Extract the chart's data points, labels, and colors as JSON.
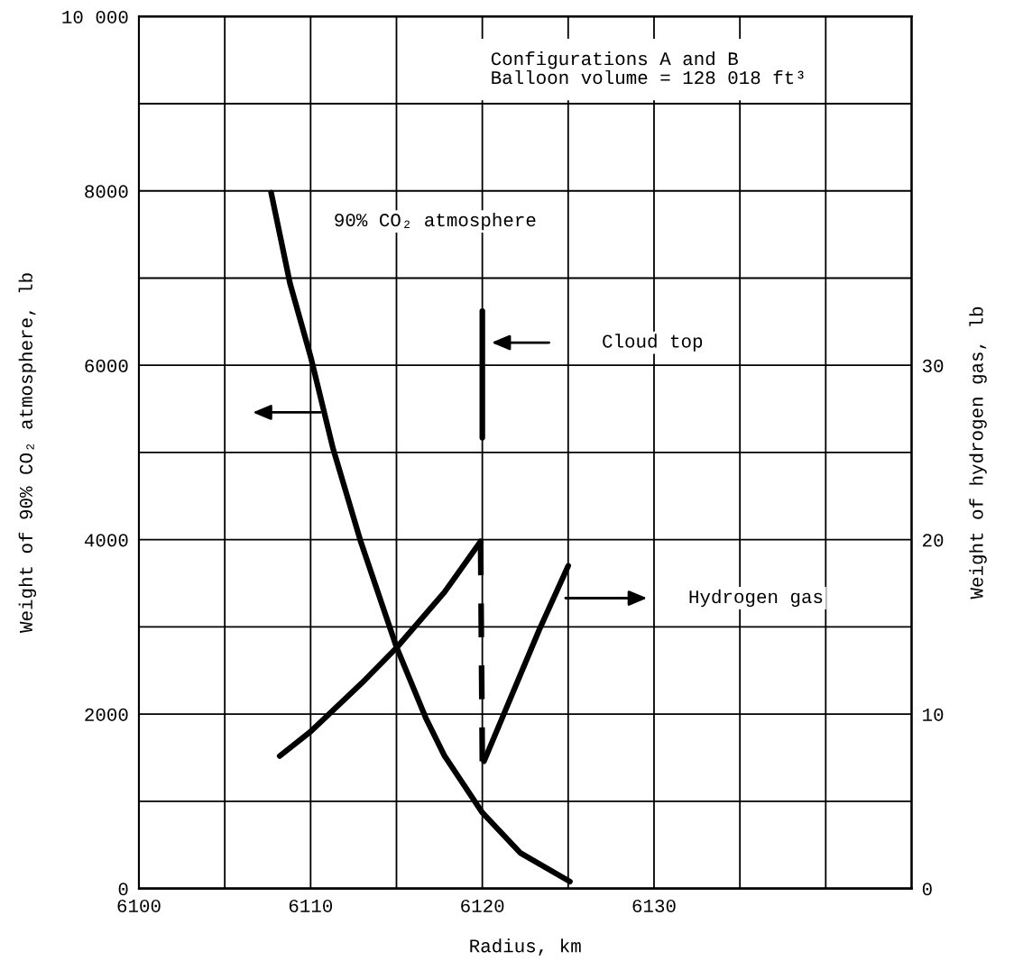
{
  "chart_data": {
    "type": "line",
    "xlabel": "Radius, km",
    "ylabel": "Weight of 90% CO₂ atmosphere, lb",
    "y2label": "Weight of hydrogen gas, lb",
    "xlim": [
      6100,
      6145
    ],
    "xticks": [
      6100,
      {
        "value": 6105,
        "label": null
      },
      6110,
      {
        "value": 6115,
        "label": null
      },
      6120,
      {
        "value": 6125,
        "label": null
      },
      6130,
      {
        "value": 6135,
        "label": null
      },
      {
        "value": 6140,
        "label": null
      }
    ],
    "ylim": [
      0,
      10000
    ],
    "yticks": [
      0,
      {
        "value": 1000,
        "label": null
      },
      2000,
      {
        "value": 3000,
        "label": null
      },
      4000,
      {
        "value": 5000,
        "label": null
      },
      6000,
      {
        "value": 7000,
        "label": null
      },
      8000,
      {
        "value": 9000,
        "label": null
      },
      {
        "value": 10000,
        "label": "10 000"
      }
    ],
    "y2lim": [
      0,
      50
    ],
    "y2ticks": [
      0,
      10,
      20,
      30
    ],
    "grid": true,
    "legend": false,
    "marker": "none",
    "series": [
      {
        "type": "line",
        "axis": "y",
        "color": "#000000",
        "line_style": "solid",
        "x": [
          6107.7,
          6108.8,
          6110.0,
          6111.3,
          6112.9,
          6115.0,
          6116.7,
          6117.8,
          6120.0,
          6122.2,
          6125.1
        ],
        "values": [
          7980,
          6940,
          6100,
          5050,
          3990,
          2770,
          1960,
          1520,
          870,
          410,
          80
        ]
      },
      {
        "type": "line",
        "axis": "y2",
        "color": "#000000",
        "line_style": "solid",
        "x": [
          6108.2,
          6110.0,
          6113.0,
          6115.0,
          6117.8,
          6119.9
        ],
        "values": [
          7.6,
          9.0,
          11.8,
          13.8,
          17.0,
          19.9
        ]
      },
      {
        "type": "line",
        "axis": "y2",
        "color": "#000000",
        "line_style": "dashed",
        "x": [
          6119.9,
          6120.0
        ],
        "values": [
          19.9,
          7.3
        ]
      },
      {
        "type": "line",
        "axis": "y2",
        "color": "#000000",
        "line_style": "solid",
        "x": [
          6120.1,
          6123.3,
          6125.0
        ],
        "values": [
          7.3,
          14.8,
          18.5
        ]
      },
      {
        "type": "line",
        "axis": "y",
        "color": "#000000",
        "line_style": "solid",
        "x": [
          6120.0,
          6120.0
        ],
        "values": [
          6620,
          5170
        ]
      }
    ],
    "annotations": [
      "Configurations A and B\nBalloon volume = 128 018 ft³",
      "90% CO₂ atmosphere",
      "Cloud top",
      "Hydrogen gas"
    ]
  }
}
